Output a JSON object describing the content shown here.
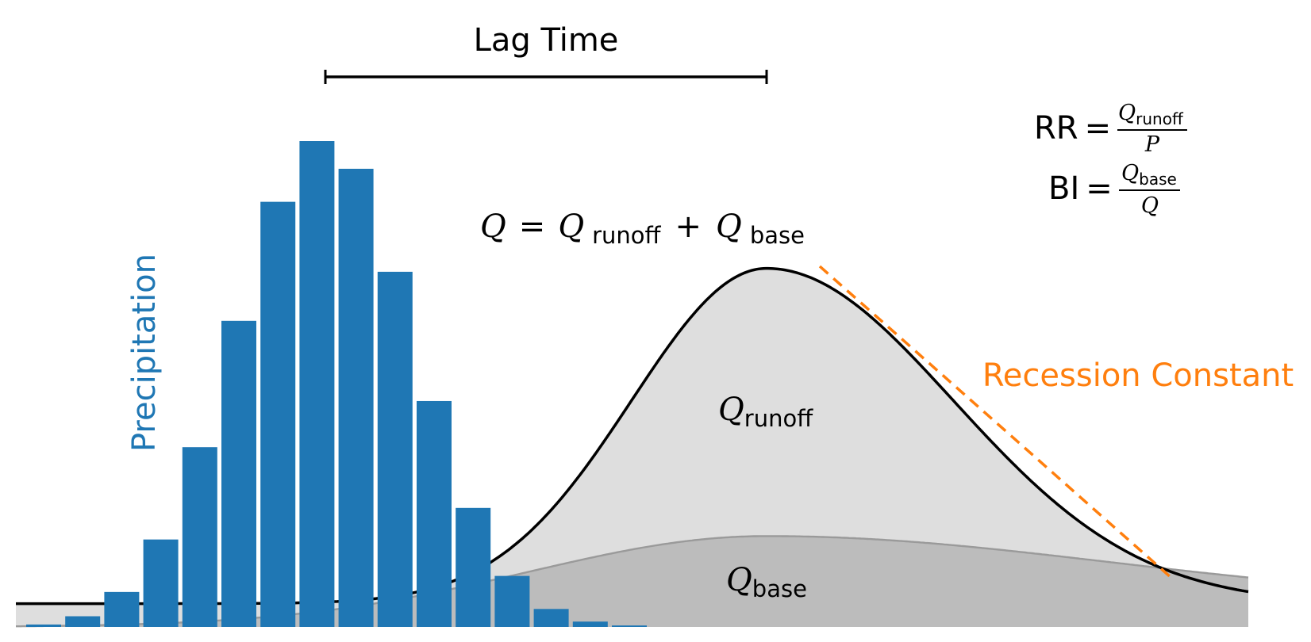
{
  "labels": {
    "lag_time": "Lag Time",
    "precipitation": "Precipitation",
    "recession_constant": "Recession Constant"
  },
  "equations": {
    "total": {
      "lhs": "Q",
      "eq": "=",
      "q1": "Q",
      "sub1": "runoff",
      "plus": "+",
      "q2": "Q",
      "sub2": "base"
    },
    "rr": {
      "lhs": "RR",
      "eq": "=",
      "num_q": "Q",
      "num_sub": "runoff",
      "den": "P"
    },
    "bi": {
      "lhs": "BI",
      "eq": "=",
      "num_q": "Q",
      "num_sub": "base",
      "den": "Q"
    },
    "runoff_label": {
      "q": "Q",
      "sub": "runoff"
    },
    "base_label": {
      "q": "Q",
      "sub": "base"
    }
  },
  "colors": {
    "precipitation": "#1f77b4",
    "recession": "#ff7f0e",
    "runoff_fill": "#dedede",
    "base_fill": "#bcbcbc",
    "base_line": "#9a9a9a",
    "hydrograph_line": "#000000"
  },
  "chart_data": {
    "type": "bar",
    "bar_values": [
      0.005,
      0.022,
      0.072,
      0.18,
      0.37,
      0.63,
      0.875,
      1.0,
      0.943,
      0.731,
      0.465,
      0.245,
      0.105,
      0.037,
      0.011,
      0.003
    ],
    "hydrograph": {
      "baseline": 0.048,
      "peak": 0.738,
      "base_peak": 0.187,
      "base_end": 0.062
    },
    "recession_line": {}
  }
}
